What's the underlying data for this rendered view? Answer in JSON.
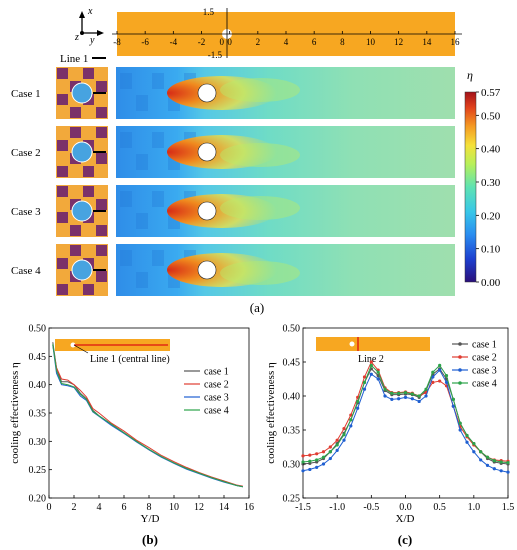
{
  "panel_a": {
    "label": "(a)",
    "axis_glyphs": {
      "x": "x",
      "y": "y",
      "z": "z"
    },
    "domain_x_ticks": [
      "-8",
      "-6",
      "-4",
      "-2",
      "0",
      "2",
      "4",
      "6",
      "8",
      "10",
      "12",
      "14",
      "16"
    ],
    "domain_y_ticks": [
      "1.5",
      "0",
      "-1.5"
    ],
    "line_legend": "Line 1",
    "cases": [
      "Case 1",
      "Case 2",
      "Case 3",
      "Case 4"
    ],
    "colorbar": {
      "symbol": "η",
      "ticks": [
        "0.57",
        "0.50",
        "0.40",
        "0.30",
        "0.20",
        "0.10",
        "0.00"
      ],
      "colors": [
        "#2a0f7a",
        "#1d3fcf",
        "#2a8df0",
        "#38c7e8",
        "#5fe3b2",
        "#b7f05a",
        "#f5e13a",
        "#f59a23",
        "#e0401c",
        "#a3121a"
      ]
    },
    "colors": {
      "domain": "#f7a721",
      "plate_orange": "#f2a93b",
      "plate_purple": "#7b3169",
      "hole": "#47a3e0"
    }
  },
  "chart_data": [
    {
      "type": "line",
      "label": "(b)",
      "xlabel": "Y/D",
      "ylabel": "cooling effectiveness η",
      "xlim": [
        0,
        16
      ],
      "ylim": [
        0.2,
        0.5
      ],
      "xticks": [
        "0",
        "2",
        "4",
        "6",
        "8",
        "10",
        "12",
        "14",
        "16"
      ],
      "yticks": [
        "0.20",
        "0.25",
        "0.30",
        "0.35",
        "0.40",
        "0.45",
        "0.50"
      ],
      "inset_label": "Line 1 (central line)",
      "legend_position": "right",
      "series": [
        {
          "name": "case 1",
          "color": "#555555",
          "x": [
            0.3,
            0.6,
            1.0,
            1.5,
            2.0,
            2.5,
            3.0,
            3.5,
            4.0,
            5.0,
            6.0,
            7.0,
            8.0,
            9.0,
            10.0,
            11.0,
            12.0,
            13.0,
            14.0,
            15.0,
            15.5
          ],
          "y": [
            0.475,
            0.43,
            0.405,
            0.405,
            0.4,
            0.385,
            0.375,
            0.355,
            0.345,
            0.33,
            0.315,
            0.3,
            0.285,
            0.272,
            0.262,
            0.252,
            0.244,
            0.236,
            0.23,
            0.222,
            0.22
          ]
        },
        {
          "name": "case 2",
          "color": "#e03c31",
          "x": [
            0.3,
            0.6,
            1.0,
            1.5,
            2.0,
            2.5,
            3.0,
            3.5,
            4.0,
            5.0,
            6.0,
            7.0,
            8.0,
            9.0,
            10.0,
            11.0,
            12.0,
            13.0,
            14.0,
            15.0,
            15.5
          ],
          "y": [
            0.47,
            0.43,
            0.41,
            0.408,
            0.4,
            0.39,
            0.378,
            0.358,
            0.35,
            0.332,
            0.318,
            0.302,
            0.289,
            0.275,
            0.264,
            0.254,
            0.245,
            0.237,
            0.23,
            0.223,
            0.221
          ]
        },
        {
          "name": "case 3",
          "color": "#1f5fd1",
          "x": [
            0.3,
            0.6,
            1.0,
            1.5,
            2.0,
            2.5,
            3.0,
            3.5,
            4.0,
            5.0,
            6.0,
            7.0,
            8.0,
            9.0,
            10.0,
            11.0,
            12.0,
            13.0,
            14.0,
            15.0,
            15.5
          ],
          "y": [
            0.47,
            0.42,
            0.4,
            0.398,
            0.395,
            0.38,
            0.372,
            0.352,
            0.344,
            0.328,
            0.314,
            0.299,
            0.285,
            0.272,
            0.261,
            0.251,
            0.243,
            0.235,
            0.228,
            0.222,
            0.22
          ]
        },
        {
          "name": "case 4",
          "color": "#2ca34a",
          "x": [
            0.3,
            0.6,
            1.0,
            1.5,
            2.0,
            2.5,
            3.0,
            3.5,
            4.0,
            5.0,
            6.0,
            7.0,
            8.0,
            9.0,
            10.0,
            11.0,
            12.0,
            13.0,
            14.0,
            15.0,
            15.5
          ],
          "y": [
            0.472,
            0.425,
            0.402,
            0.4,
            0.396,
            0.383,
            0.374,
            0.353,
            0.345,
            0.33,
            0.315,
            0.3,
            0.286,
            0.273,
            0.262,
            0.252,
            0.244,
            0.236,
            0.229,
            0.222,
            0.22
          ]
        }
      ]
    },
    {
      "type": "line",
      "label": "(c)",
      "xlabel": "X/D",
      "ylabel": "cooling effectiveness η",
      "xlim": [
        -1.5,
        1.5
      ],
      "ylim": [
        0.25,
        0.5
      ],
      "xticks": [
        "-1.5",
        "-1.0",
        "-0.5",
        "0.0",
        "0.5",
        "1.0",
        "1.5"
      ],
      "yticks": [
        "0.25",
        "0.30",
        "0.35",
        "0.40",
        "0.45",
        "0.50"
      ],
      "inset_label": "Line 2",
      "legend_position": "right",
      "series": [
        {
          "name": "case 1",
          "color": "#555555",
          "x": [
            -1.5,
            -1.4,
            -1.3,
            -1.2,
            -1.1,
            -1.0,
            -0.9,
            -0.8,
            -0.7,
            -0.6,
            -0.5,
            -0.4,
            -0.3,
            -0.2,
            -0.1,
            0.0,
            0.1,
            0.2,
            0.3,
            0.4,
            0.5,
            0.6,
            0.7,
            0.8,
            0.9,
            1.0,
            1.1,
            1.2,
            1.3,
            1.4,
            1.5
          ],
          "y": [
            0.3,
            0.301,
            0.303,
            0.308,
            0.318,
            0.33,
            0.345,
            0.365,
            0.39,
            0.42,
            0.44,
            0.43,
            0.408,
            0.402,
            0.402,
            0.403,
            0.402,
            0.398,
            0.408,
            0.432,
            0.44,
            0.425,
            0.395,
            0.36,
            0.342,
            0.33,
            0.318,
            0.308,
            0.303,
            0.301,
            0.3
          ]
        },
        {
          "name": "case 2",
          "color": "#e03c31",
          "x": [
            -1.5,
            -1.4,
            -1.3,
            -1.2,
            -1.1,
            -1.0,
            -0.9,
            -0.8,
            -0.7,
            -0.6,
            -0.5,
            -0.4,
            -0.3,
            -0.2,
            -0.1,
            0.0,
            0.1,
            0.2,
            0.3,
            0.4,
            0.5,
            0.6,
            0.7,
            0.8,
            0.9,
            1.0,
            1.1,
            1.2,
            1.3,
            1.4,
            1.5
          ],
          "y": [
            0.312,
            0.313,
            0.315,
            0.318,
            0.325,
            0.335,
            0.352,
            0.372,
            0.398,
            0.428,
            0.45,
            0.438,
            0.412,
            0.405,
            0.405,
            0.406,
            0.404,
            0.4,
            0.405,
            0.42,
            0.422,
            0.415,
            0.385,
            0.355,
            0.34,
            0.328,
            0.318,
            0.31,
            0.306,
            0.305,
            0.304
          ]
        },
        {
          "name": "case 3",
          "color": "#1f5fd1",
          "x": [
            -1.5,
            -1.4,
            -1.3,
            -1.2,
            -1.1,
            -1.0,
            -0.9,
            -0.8,
            -0.7,
            -0.6,
            -0.5,
            -0.4,
            -0.3,
            -0.2,
            -0.1,
            0.0,
            0.1,
            0.2,
            0.3,
            0.4,
            0.5,
            0.6,
            0.7,
            0.8,
            0.9,
            1.0,
            1.1,
            1.2,
            1.3,
            1.4,
            1.5
          ],
          "y": [
            0.29,
            0.292,
            0.295,
            0.3,
            0.308,
            0.32,
            0.335,
            0.356,
            0.382,
            0.41,
            0.432,
            0.425,
            0.4,
            0.395,
            0.396,
            0.398,
            0.396,
            0.392,
            0.4,
            0.428,
            0.438,
            0.42,
            0.385,
            0.35,
            0.332,
            0.318,
            0.306,
            0.298,
            0.293,
            0.29,
            0.288
          ]
        },
        {
          "name": "case 4",
          "color": "#2ca34a",
          "x": [
            -1.5,
            -1.4,
            -1.3,
            -1.2,
            -1.1,
            -1.0,
            -0.9,
            -0.8,
            -0.7,
            -0.6,
            -0.5,
            -0.4,
            -0.3,
            -0.2,
            -0.1,
            0.0,
            0.1,
            0.2,
            0.3,
            0.4,
            0.5,
            0.6,
            0.7,
            0.8,
            0.9,
            1.0,
            1.1,
            1.2,
            1.3,
            1.4,
            1.5
          ],
          "y": [
            0.303,
            0.304,
            0.306,
            0.31,
            0.318,
            0.328,
            0.343,
            0.365,
            0.392,
            0.42,
            0.445,
            0.435,
            0.41,
            0.404,
            0.404,
            0.405,
            0.403,
            0.4,
            0.41,
            0.435,
            0.445,
            0.43,
            0.395,
            0.36,
            0.342,
            0.33,
            0.318,
            0.31,
            0.305,
            0.303,
            0.302
          ]
        }
      ]
    }
  ]
}
